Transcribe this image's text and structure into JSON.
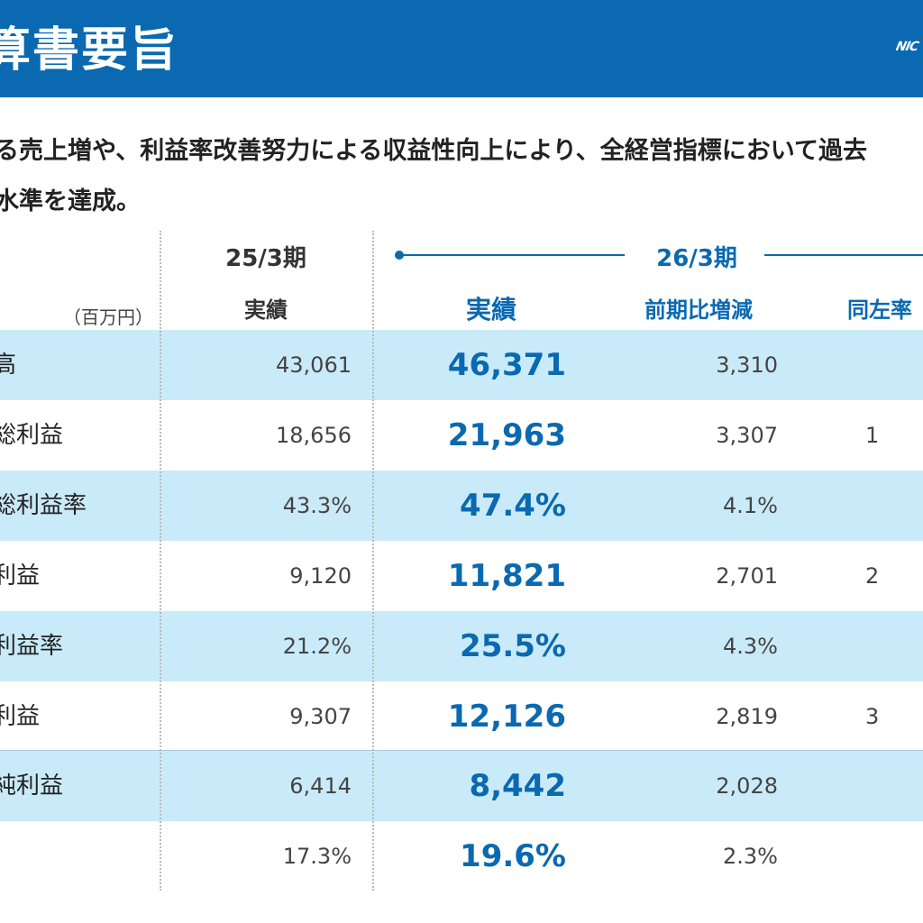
{
  "header": {
    "title": "算書要旨",
    "logo_text": "NIC"
  },
  "summary": {
    "line1": "る売上増や、利益率改善努力による収益性向上により、全経営指標において過去",
    "line2": "水準を達成。"
  },
  "table": {
    "unit": "（百万円）",
    "period_prev": "25/3期",
    "period_cur": "26/3期",
    "col_prev_actual": "実績",
    "col_cur_actual": "実績",
    "col_diff": "前期比増減",
    "col_same": "同左率",
    "rows": [
      {
        "label": "高",
        "prev": "43,061",
        "actual": "46,371",
        "diff": "3,310",
        "same": ""
      },
      {
        "label": "総利益",
        "prev": "18,656",
        "actual": "21,963",
        "diff": "3,307",
        "same": "1"
      },
      {
        "label": "総利益率",
        "prev": "43.3%",
        "actual": "47.4%",
        "diff": "4.1%",
        "same": ""
      },
      {
        "label": "利益",
        "prev": "9,120",
        "actual": "11,821",
        "diff": "2,701",
        "same": "2"
      },
      {
        "label": "利益率",
        "prev": "21.2%",
        "actual": "25.5%",
        "diff": "4.3%",
        "same": ""
      },
      {
        "label": "利益",
        "prev": "9,307",
        "actual": "12,126",
        "diff": "2,819",
        "same": "3"
      },
      {
        "label": "純利益",
        "prev": "6,414",
        "actual": "8,442",
        "diff": "2,028",
        "same": ""
      },
      {
        "label": "",
        "prev": "17.3%",
        "actual": "19.6%",
        "diff": "2.3%",
        "same": ""
      }
    ]
  },
  "colors": {
    "accent": "#0a69b0",
    "row_shade": "#c9eaf8"
  }
}
